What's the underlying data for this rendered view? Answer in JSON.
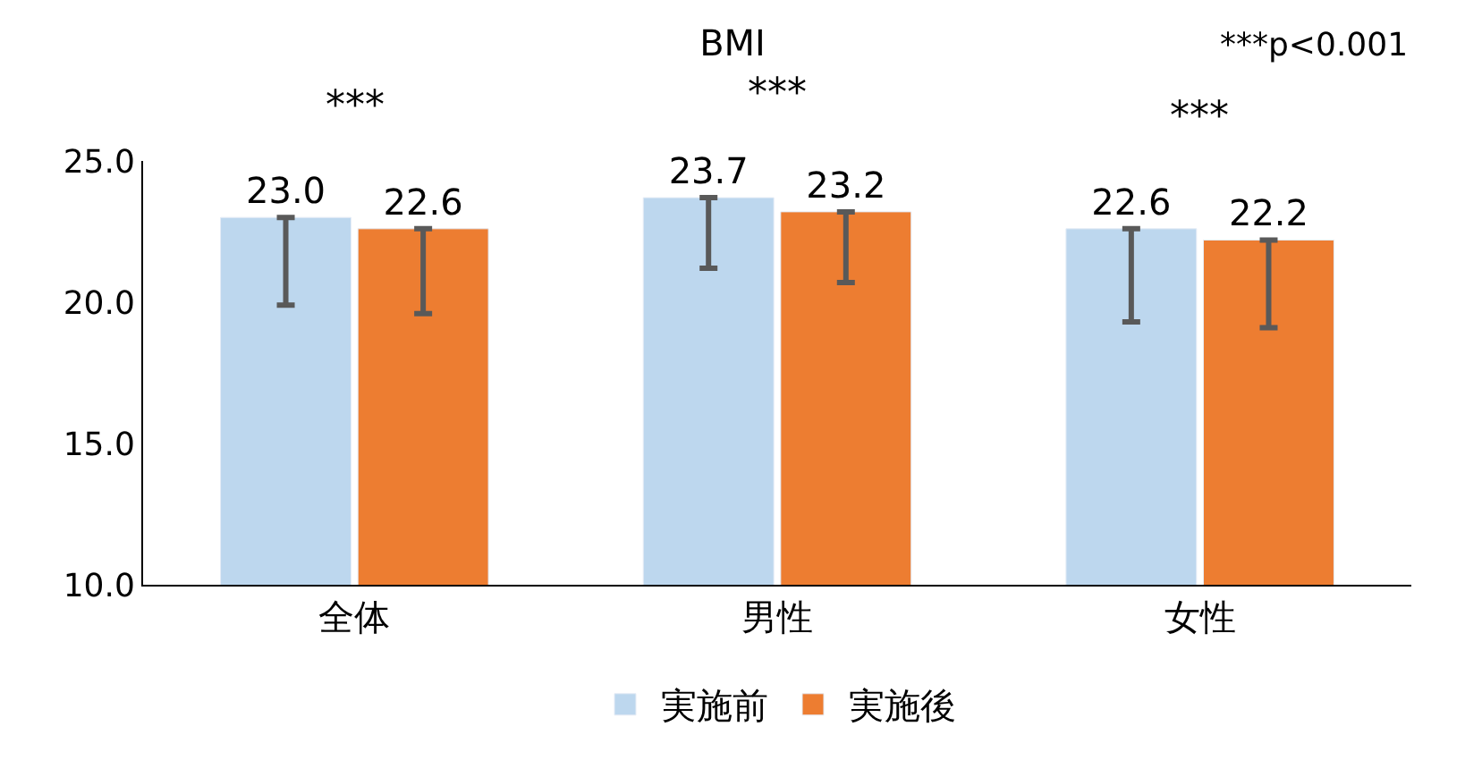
{
  "chart_data": {
    "type": "bar",
    "title": "BMI",
    "categories": [
      "全体",
      "男性",
      "女性"
    ],
    "series": [
      {
        "name": "実施前",
        "color": "#bdd7ee",
        "values": [
          23.0,
          23.7,
          22.6
        ],
        "value_labels": [
          "23.0",
          "23.7",
          "22.6"
        ],
        "errors": [
          [
            19.9,
            23.0
          ],
          [
            21.2,
            23.7
          ],
          [
            19.3,
            22.6
          ]
        ]
      },
      {
        "name": "実施後",
        "color": "#ed7d31",
        "values": [
          22.6,
          23.2,
          22.2
        ],
        "value_labels": [
          "22.6",
          "23.2",
          "22.2"
        ],
        "errors": [
          [
            19.6,
            22.6
          ],
          [
            20.7,
            23.2
          ],
          [
            19.1,
            22.2
          ]
        ]
      }
    ],
    "ylim": [
      10,
      25
    ],
    "yticks": [
      {
        "value": 10,
        "label": "10.0"
      },
      {
        "value": 15,
        "label": "15.0"
      },
      {
        "value": 20,
        "label": "20.0"
      },
      {
        "value": 25,
        "label": "25.0"
      }
    ],
    "legend": "bottom",
    "annotations": [
      "***p<0.001",
      "***",
      "***",
      "***"
    ]
  }
}
